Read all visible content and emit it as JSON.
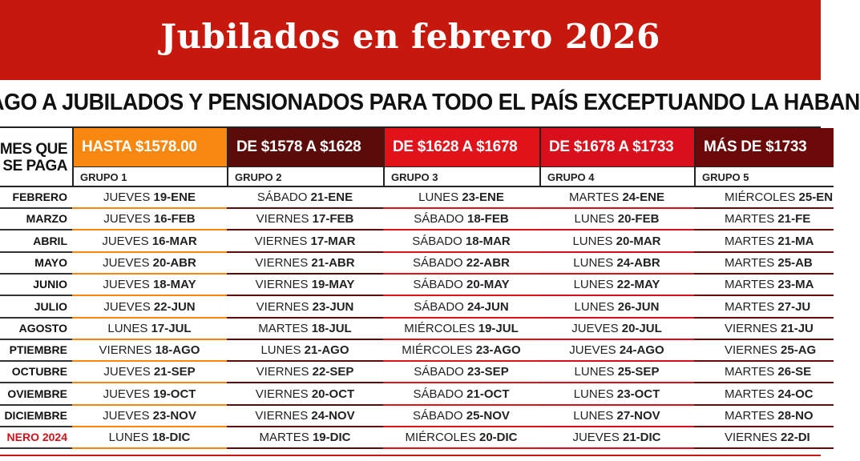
{
  "title": "Jubilados en febrero 2026",
  "subtitle": "AGO A JUBILADOS Y PENSIONADOS PARA TODO EL PAÍS EXCEPTUANDO LA HABAN",
  "month_header": [
    "MES QUE",
    "SE PAGA"
  ],
  "months": [
    "FEBRERO",
    "MARZO",
    "ABRIL",
    "MAYO",
    "JUNIO",
    "JULIO",
    "AGOSTO",
    "PTIEMBRE",
    "OCTUBRE",
    "OVIEMBRE",
    "DICIEMBRE",
    "NERO 2024"
  ],
  "colors": {
    "band": "#c7180e",
    "g1": "#f7870f",
    "g2": "#5a0b0a",
    "g3": "#e2121a",
    "g4": "#d9101c",
    "g5": "#6b0909",
    "last_month": "#d0101a"
  },
  "groups": [
    {
      "range": "HASTA $1578.00",
      "name": "GRUPO 1",
      "rows": [
        [
          "JUEVES",
          "19-ENE"
        ],
        [
          "JUEVES",
          "16-FEB"
        ],
        [
          "JUEVES",
          "16-MAR"
        ],
        [
          "JUEVES",
          "20-ABR"
        ],
        [
          "JUEVES",
          "18-MAY"
        ],
        [
          "JUEVES",
          "22-JUN"
        ],
        [
          "LUNES",
          "17-JUL"
        ],
        [
          "VIERNES",
          "18-AGO"
        ],
        [
          "JUEVES",
          "21-SEP"
        ],
        [
          "JUEVES",
          "19-OCT"
        ],
        [
          "JUEVES",
          "23-NOV"
        ],
        [
          "LUNES",
          "18-DIC"
        ]
      ]
    },
    {
      "range": "DE $1578 A $1628",
      "name": "GRUPO 2",
      "rows": [
        [
          "SÁBADO",
          "21-ENE"
        ],
        [
          "VIERNES",
          "17-FEB"
        ],
        [
          "VIERNES",
          "17-MAR"
        ],
        [
          "VIERNES",
          "21-ABR"
        ],
        [
          "VIERNES",
          "19-MAY"
        ],
        [
          "VIERNES",
          "23-JUN"
        ],
        [
          "MARTES",
          "18-JUL"
        ],
        [
          "LUNES",
          "21-AGO"
        ],
        [
          "VIERNES",
          "22-SEP"
        ],
        [
          "VIERNES",
          "20-OCT"
        ],
        [
          "VIERNES",
          "24-NOV"
        ],
        [
          "MARTES",
          "19-DIC"
        ]
      ]
    },
    {
      "range": "DE $1628 A $1678",
      "name": "GRUPO 3",
      "rows": [
        [
          "LUNES",
          "23-ENE"
        ],
        [
          "SÁBADO",
          "18-FEB"
        ],
        [
          "SÁBADO",
          "18-MAR"
        ],
        [
          "SÁBADO",
          "22-ABR"
        ],
        [
          "SÁBADO",
          "20-MAY"
        ],
        [
          "SÁBADO",
          "24-JUN"
        ],
        [
          "MIÉRCOLES",
          "19-JUL"
        ],
        [
          "MIÉRCOLES",
          "23-AGO"
        ],
        [
          "SÁBADO",
          "23-SEP"
        ],
        [
          "SÁBADO",
          "21-OCT"
        ],
        [
          "SÁBADO",
          "25-NOV"
        ],
        [
          "MIÉRCOLES",
          "20-DIC"
        ]
      ]
    },
    {
      "range": "DE $1678 A $1733",
      "name": "GRUPO 4",
      "rows": [
        [
          "MARTES",
          "24-ENE"
        ],
        [
          "LUNES",
          "20-FEB"
        ],
        [
          "LUNES",
          "20-MAR"
        ],
        [
          "LUNES",
          "24-ABR"
        ],
        [
          "LUNES",
          "22-MAY"
        ],
        [
          "LUNES",
          "26-JUN"
        ],
        [
          "JUEVES",
          "20-JUL"
        ],
        [
          "JUEVES",
          "24-AGO"
        ],
        [
          "LUNES",
          "25-SEP"
        ],
        [
          "LUNES",
          "23-OCT"
        ],
        [
          "LUNES",
          "27-NOV"
        ],
        [
          "JUEVES",
          "21-DIC"
        ]
      ]
    },
    {
      "range": "MÁS DE $1733",
      "name": "GRUPO 5",
      "rows": [
        [
          "MIÉRCOLES",
          "25-EN"
        ],
        [
          "MARTES",
          "21-FE"
        ],
        [
          "MARTES",
          "21-MA"
        ],
        [
          "MARTES",
          "25-AB"
        ],
        [
          "MARTES",
          "23-MA"
        ],
        [
          "MARTES",
          "27-JU"
        ],
        [
          "VIERNES",
          "21-JU"
        ],
        [
          "VIERNES",
          "25-AG"
        ],
        [
          "MARTES",
          "26-SE"
        ],
        [
          "MARTES",
          "24-OC"
        ],
        [
          "MARTES",
          "28-NO"
        ],
        [
          "VIERNES",
          "22-DI"
        ]
      ]
    }
  ]
}
